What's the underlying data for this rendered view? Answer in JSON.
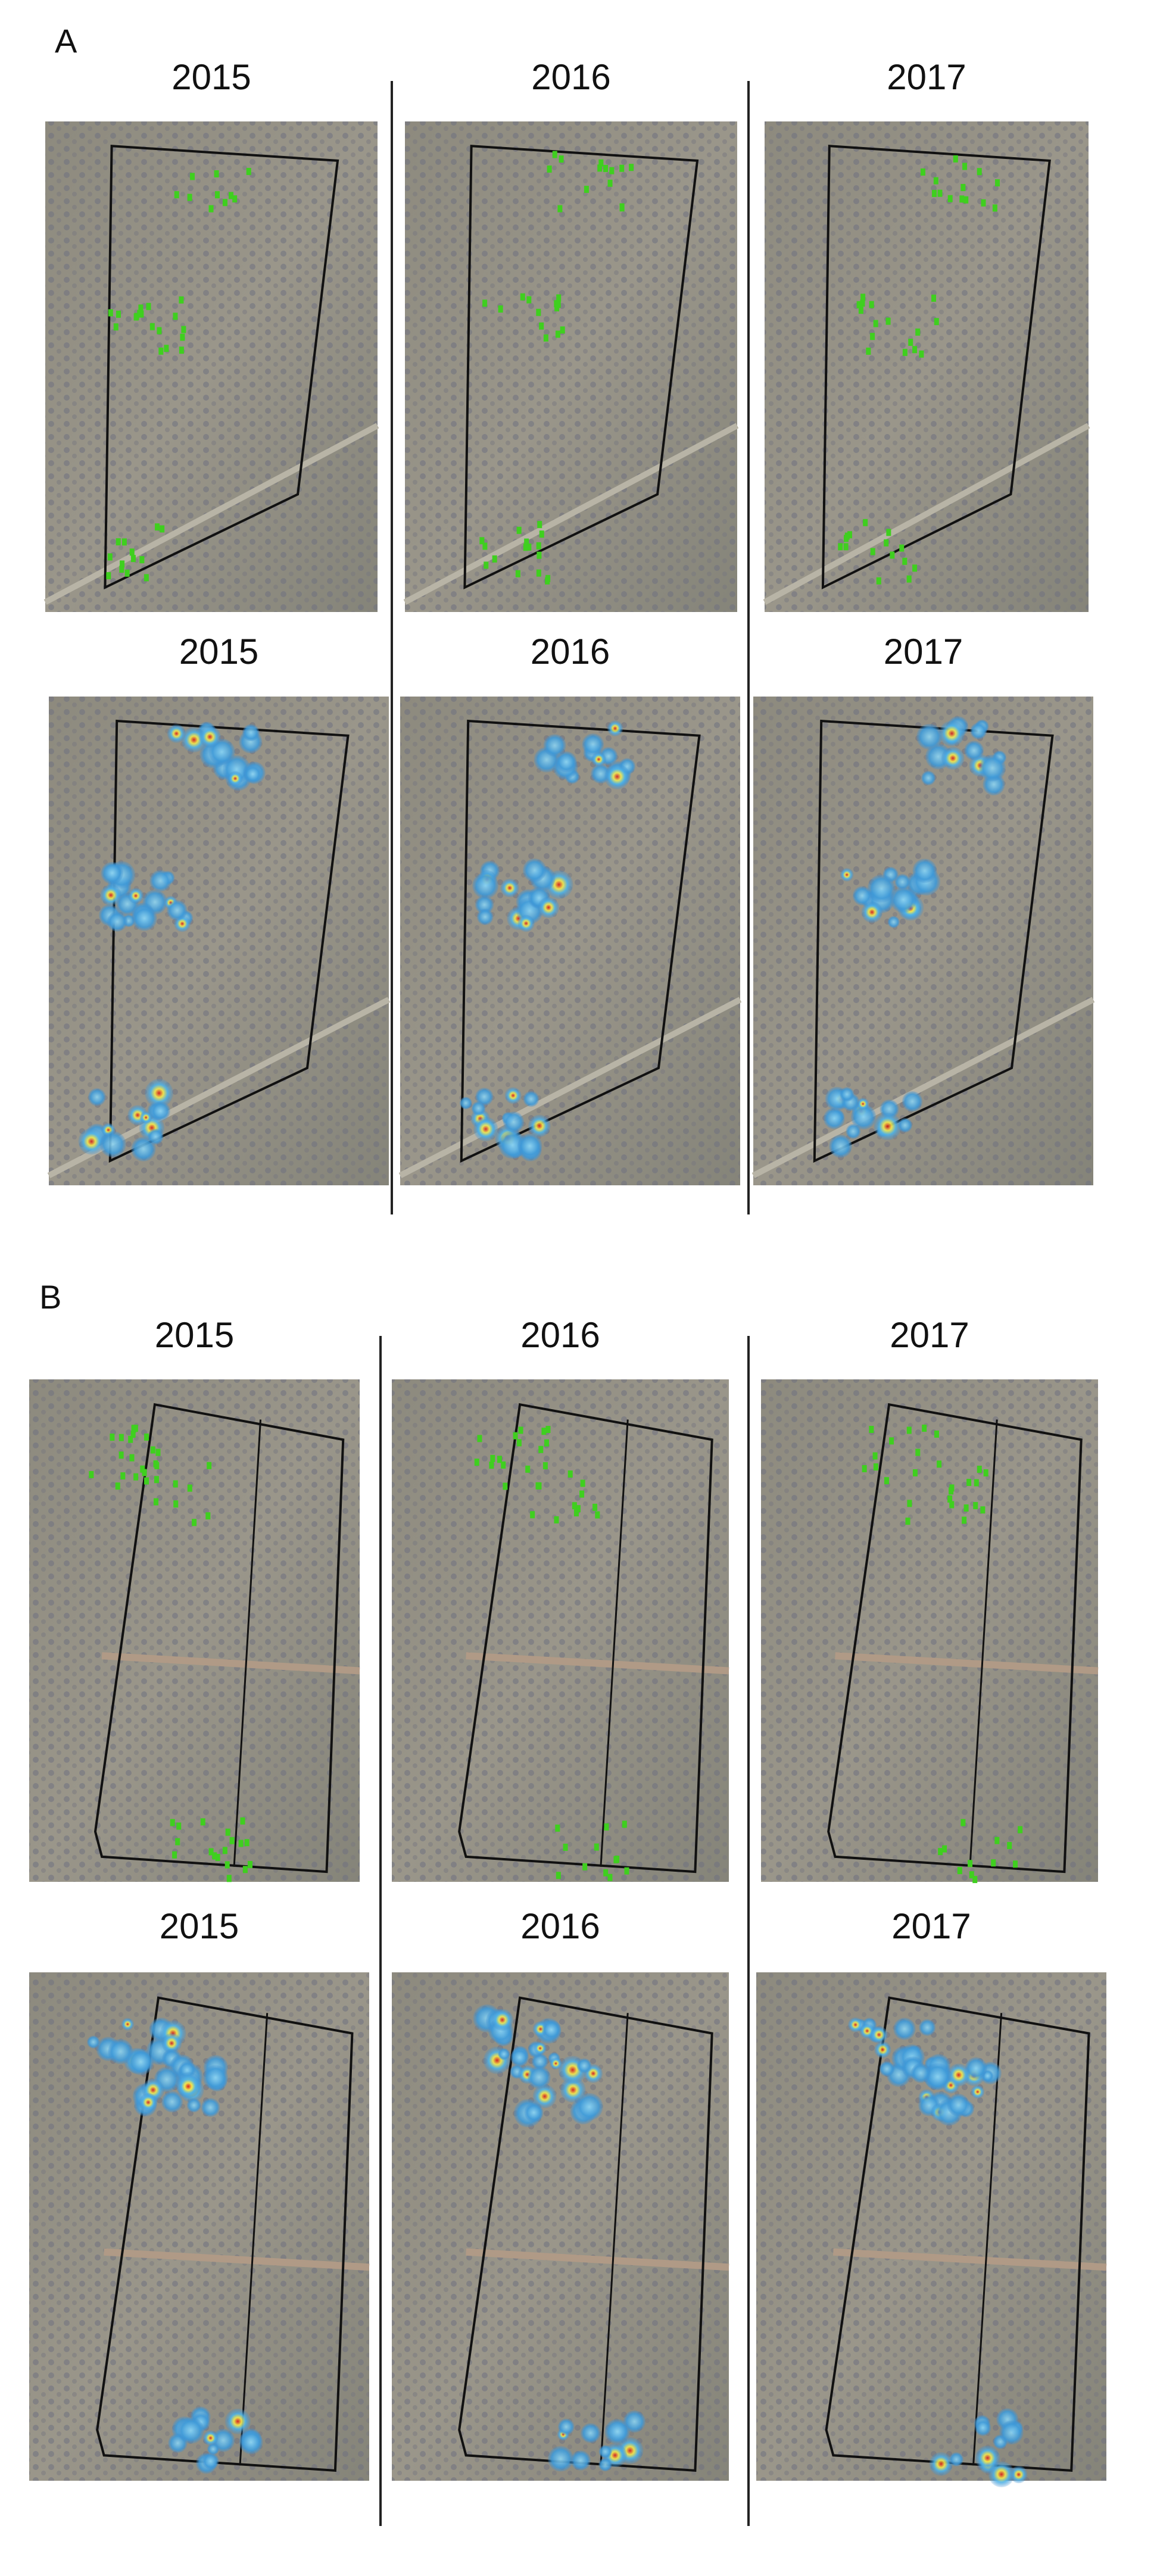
{
  "panels": [
    {
      "label": "A",
      "rows": [
        [
          "2015",
          "2016",
          "2017"
        ],
        [
          "2015",
          "2016",
          "2017"
        ]
      ]
    },
    {
      "label": "B",
      "rows": [
        [
          "2015",
          "2016",
          "2017"
        ],
        [
          "2015",
          "2016",
          "2017"
        ]
      ]
    }
  ]
}
